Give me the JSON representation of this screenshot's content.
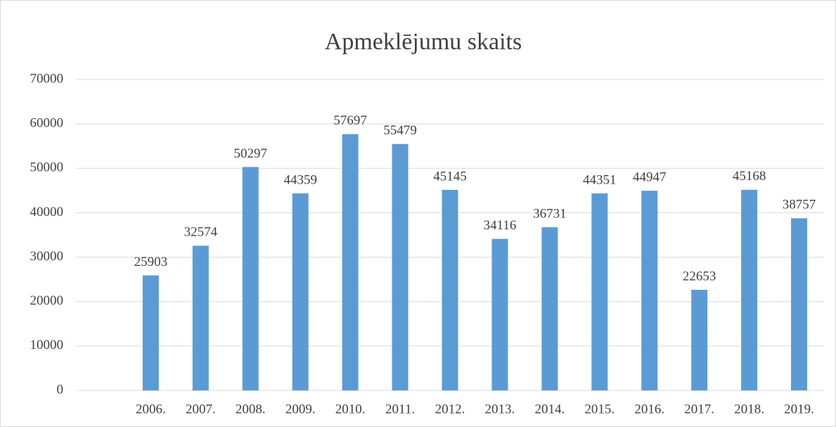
{
  "chart_data": {
    "type": "bar",
    "title": "Apmeklējumu skaits",
    "categories": [
      null,
      "2006.",
      "2007.",
      "2008.",
      "2009.",
      "2010.",
      "2011.",
      "2012.",
      "2013.",
      "2014.",
      "2015.",
      "2016.",
      "2017.",
      "2018.",
      "2019."
    ],
    "values": [
      null,
      25903,
      32574,
      50297,
      44359,
      57697,
      55479,
      45145,
      34116,
      36731,
      44351,
      44947,
      22653,
      45168,
      38757
    ],
    "color": "#5b9bd5",
    "ylim": [
      0,
      70000
    ],
    "yticks": [
      0,
      10000,
      20000,
      30000,
      40000,
      50000,
      60000,
      70000
    ],
    "grid": true
  }
}
